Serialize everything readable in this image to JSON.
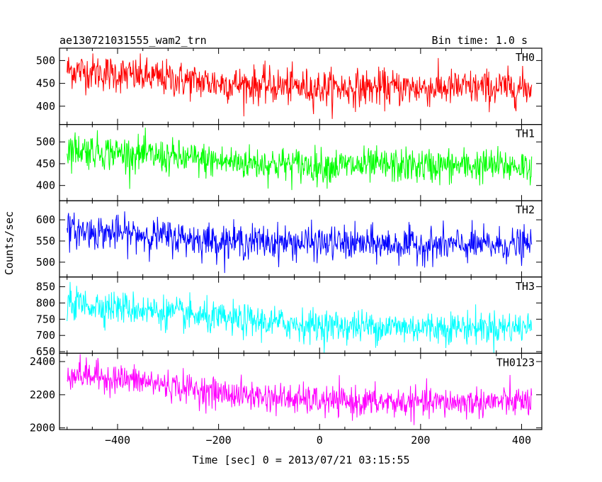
{
  "header": {
    "title": "ae130721031555_wam2_trn",
    "bin_time": "Bin time: 1.0 s"
  },
  "chart_data": {
    "type": "line",
    "title": "ae130721031555_wam2_trn",
    "xlabel": "Time [sec] 0 = 2013/07/21 03:15:55",
    "ylabel": "Counts/sec",
    "xlim": [
      -515,
      440
    ],
    "x_ticks": [
      -400,
      -200,
      0,
      200,
      400
    ],
    "x_tick_labels": [
      "−400",
      "−200",
      "0",
      "200",
      "400"
    ],
    "x_range": [
      -500,
      420
    ],
    "x_step": 1,
    "grid": false,
    "panels": [
      {
        "name": "TH0",
        "color": "#ff0000",
        "ylim": [
          360,
          527
        ],
        "yticks": [
          400,
          450,
          500
        ],
        "trend": [
          [
            -500,
            480
          ],
          [
            -350,
            465
          ],
          [
            -200,
            450
          ],
          [
            0,
            440
          ],
          [
            200,
            440
          ],
          [
            420,
            440
          ]
        ],
        "noise_sd": 20
      },
      {
        "name": "TH1",
        "color": "#00ff00",
        "ylim": [
          365,
          540
        ],
        "yticks": [
          400,
          450,
          500
        ],
        "trend": [
          [
            -500,
            485
          ],
          [
            -350,
            470
          ],
          [
            -200,
            455
          ],
          [
            0,
            445
          ],
          [
            200,
            445
          ],
          [
            420,
            445
          ]
        ],
        "noise_sd": 20
      },
      {
        "name": "TH2",
        "color": "#0000ff",
        "ylim": [
          465,
          645
        ],
        "yticks": [
          500,
          550,
          600
        ],
        "trend": [
          [
            -500,
            575
          ],
          [
            -350,
            565
          ],
          [
            -200,
            550
          ],
          [
            0,
            545
          ],
          [
            200,
            540
          ],
          [
            420,
            540
          ]
        ],
        "noise_sd": 20
      },
      {
        "name": "TH3",
        "color": "#00ffff",
        "ylim": [
          645,
          880
        ],
        "yticks": [
          650,
          700,
          750,
          800,
          850
        ],
        "trend": [
          [
            -500,
            800
          ],
          [
            -350,
            780
          ],
          [
            -200,
            750
          ],
          [
            0,
            730
          ],
          [
            200,
            725
          ],
          [
            420,
            725
          ]
        ],
        "noise_sd": 25
      },
      {
        "name": "TH0123",
        "color": "#ff00ff",
        "ylim": [
          1990,
          2450
        ],
        "yticks": [
          2000,
          2200,
          2400
        ],
        "trend": [
          [
            -500,
            2330
          ],
          [
            -350,
            2280
          ],
          [
            -200,
            2210
          ],
          [
            0,
            2160
          ],
          [
            200,
            2150
          ],
          [
            420,
            2160
          ]
        ],
        "noise_sd": 45
      }
    ]
  }
}
